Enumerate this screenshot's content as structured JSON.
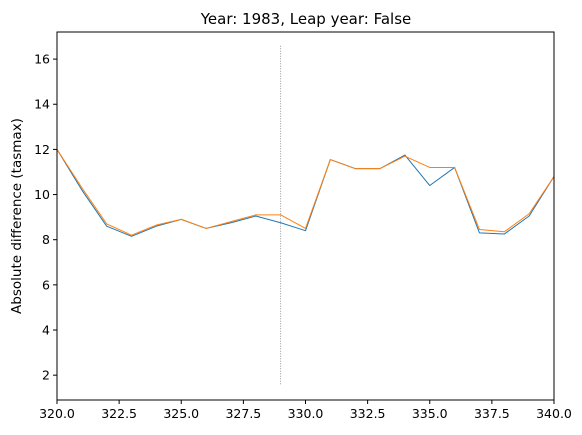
{
  "chart_data": {
    "type": "line",
    "title": "Year: 1983, Leap year: False",
    "xlabel": "",
    "ylabel": "Absolute difference (tasmax)",
    "xlim": [
      320,
      340
    ],
    "ylim": [
      0.9,
      17.2
    ],
    "x_ticks": [
      320,
      322.5,
      325,
      327.5,
      330,
      332.5,
      335,
      337.5,
      340
    ],
    "x_tick_labels": [
      "320.0",
      "322.5",
      "325.0",
      "327.5",
      "330.0",
      "332.5",
      "335.0",
      "337.5",
      "340.0"
    ],
    "y_ticks": [
      2,
      4,
      6,
      8,
      10,
      12,
      14,
      16
    ],
    "y_tick_labels": [
      "2",
      "4",
      "6",
      "8",
      "10",
      "12",
      "14",
      "16"
    ],
    "grid": false,
    "legend": "none",
    "x": [
      320,
      321,
      322,
      323,
      324,
      325,
      326,
      327,
      328,
      329,
      330,
      331,
      332,
      333,
      334,
      335,
      336,
      337,
      338,
      339,
      340
    ],
    "series": [
      {
        "color": "#1f77b4",
        "values": [
          12.0,
          10.2,
          8.6,
          8.15,
          8.6,
          8.9,
          8.5,
          8.75,
          9.05,
          8.75,
          8.4,
          11.55,
          11.15,
          11.15,
          11.75,
          10.4,
          11.2,
          8.3,
          8.25,
          9.05,
          10.8
        ]
      },
      {
        "color": "#ff7f0e",
        "values": [
          12.0,
          10.3,
          8.7,
          8.2,
          8.65,
          8.9,
          8.5,
          8.8,
          9.1,
          9.1,
          8.5,
          11.55,
          11.15,
          11.15,
          11.7,
          11.2,
          11.2,
          8.45,
          8.35,
          9.15,
          10.8
        ]
      }
    ],
    "vline": {
      "x": 329,
      "y_range": [
        1.6,
        16.6
      ],
      "color": "#808080",
      "style": "dotted"
    }
  }
}
